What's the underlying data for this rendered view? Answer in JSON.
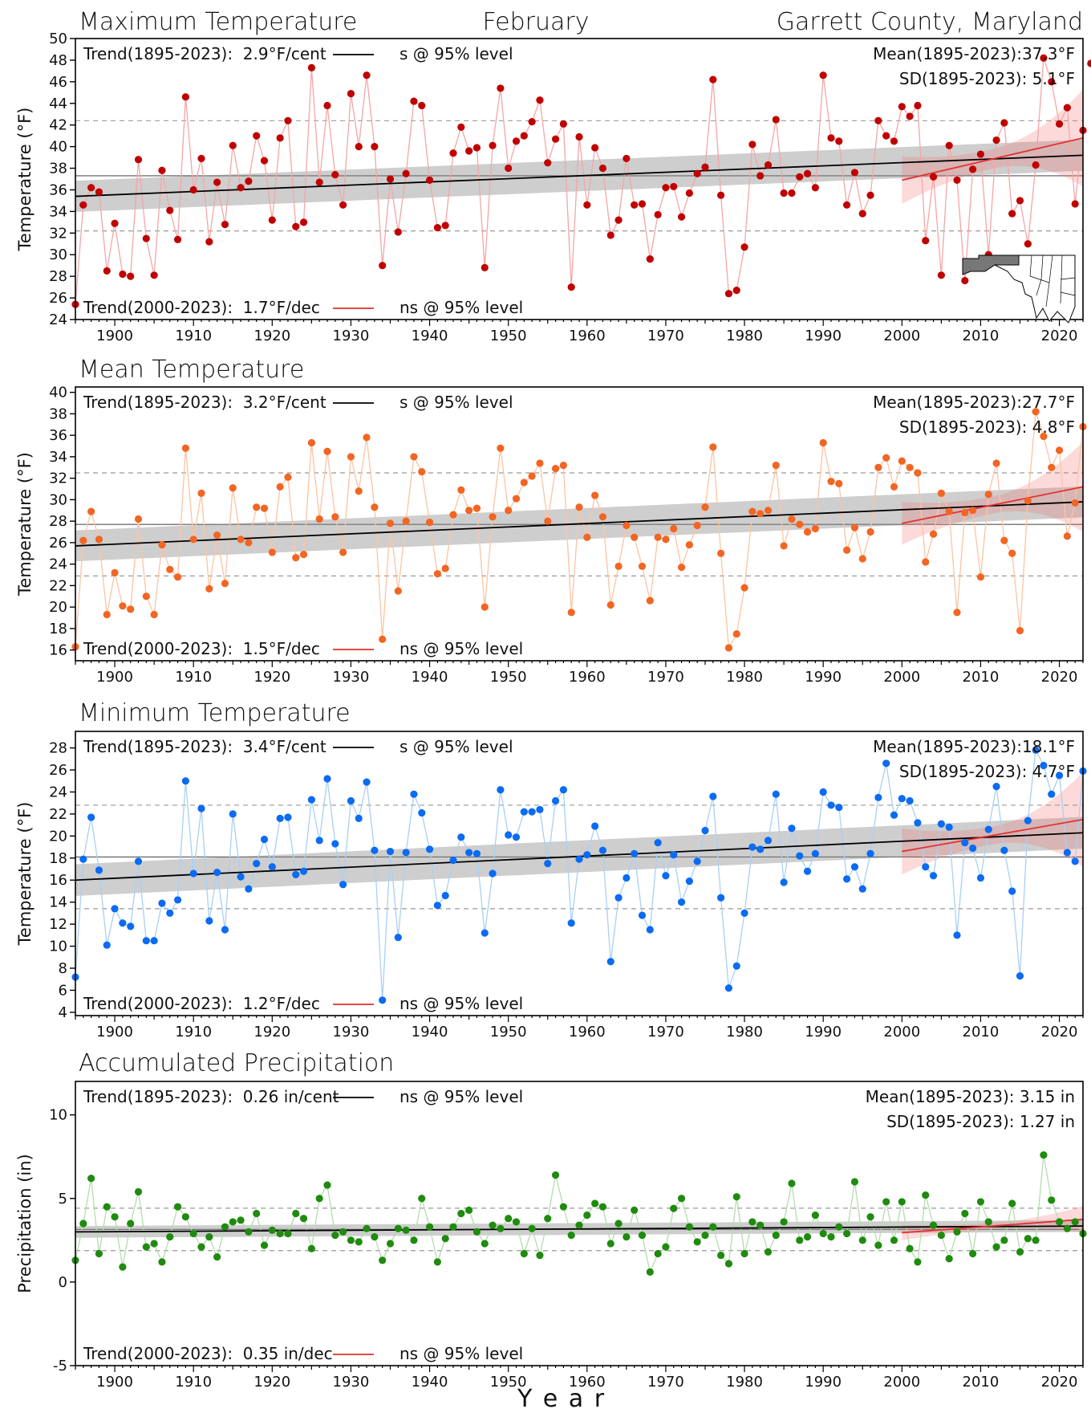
{
  "header": {
    "left": "Maximum Temperature",
    "center": "February",
    "right": "Garrett County, Maryland"
  },
  "x_axis_label": "Y e a r",
  "chart_data": [
    {
      "type": "line",
      "title": "Maximum Temperature",
      "ylabel": "Temperature (°F)",
      "color": "#c00000",
      "line_color": "#f4a6a6",
      "xlim": [
        1895,
        2023
      ],
      "ylim": [
        24,
        50
      ],
      "yticks": [
        24,
        26,
        28,
        30,
        32,
        34,
        36,
        38,
        40,
        42,
        44,
        46,
        48,
        50
      ],
      "xticks": [
        1900,
        1910,
        1920,
        1930,
        1940,
        1950,
        1960,
        1970,
        1980,
        1990,
        2000,
        2010,
        2020
      ],
      "mean": 37.3,
      "sd": 5.1,
      "trend_long": {
        "start": 35.4,
        "end": 39.2,
        "band": 0.9
      },
      "trend_recent": {
        "start": 36.9,
        "end": 40.8,
        "band_start": 2.2,
        "band_mid": 0.9,
        "band_end": 4.5
      },
      "ann": {
        "trend_long": "Trend(1895-2023):  2.9°F/cent",
        "sig_long": "s @ 95% level",
        "trend_recent": "Trend(2000-2023):  1.7°F/dec",
        "sig_recent": "ns @ 95% level",
        "mean": "Mean(1895-2023):37.3°F",
        "sd": "SD(1895-2023): 5.1°F"
      },
      "values": [
        25.4,
        34.6,
        36.2,
        35.8,
        28.5,
        32.9,
        28.2,
        28.0,
        38.8,
        31.5,
        28.1,
        37.8,
        34.1,
        31.4,
        44.6,
        36.0,
        38.9,
        31.2,
        36.7,
        32.8,
        40.1,
        36.2,
        36.8,
        41.0,
        38.7,
        33.2,
        40.8,
        42.4,
        32.6,
        33.0,
        47.3,
        36.7,
        43.8,
        37.4,
        34.6,
        44.9,
        40.0,
        46.6,
        40.0,
        29.0,
        37.0,
        32.1,
        37.5,
        44.2,
        43.8,
        36.9,
        32.5,
        32.7,
        39.4,
        41.8,
        39.6,
        39.9,
        28.8,
        40.1,
        45.4,
        38.0,
        40.5,
        41.0,
        42.3,
        44.3,
        38.5,
        40.7,
        42.1,
        27.0,
        40.9,
        34.6,
        39.9,
        38.0,
        31.8,
        33.2,
        38.9,
        34.6,
        34.7,
        29.6,
        33.7,
        36.2,
        36.3,
        33.5,
        35.7,
        37.5,
        38.1,
        46.2,
        35.5,
        26.4,
        26.7,
        30.7,
        40.2,
        37.3,
        38.3,
        42.5,
        35.7,
        35.7,
        37.2,
        37.5,
        36.2,
        46.6,
        40.8,
        40.5,
        34.6,
        37.6,
        33.8,
        35.5,
        42.4,
        41.0,
        40.5,
        43.7,
        42.8,
        43.8,
        31.3,
        37.2,
        28.1,
        40.1,
        36.9,
        27.6,
        37.9,
        39.3,
        30.0,
        40.6,
        42.2,
        33.8,
        35.0,
        31.0,
        38.3,
        48.2,
        46.0,
        42.1,
        43.6,
        34.7,
        41.5,
        47.7
      ]
    },
    {
      "type": "line",
      "title": "Mean Temperature",
      "ylabel": "Temperature (°F)",
      "color": "#f26522",
      "line_color": "#fbc4a3",
      "xlim": [
        1895,
        2023
      ],
      "ylim": [
        15,
        40.5
      ],
      "yticks": [
        16,
        18,
        20,
        22,
        24,
        26,
        28,
        30,
        32,
        34,
        36,
        38,
        40
      ],
      "xticks": [
        1900,
        1910,
        1920,
        1930,
        1940,
        1950,
        1960,
        1970,
        1980,
        1990,
        2000,
        2010,
        2020
      ],
      "mean": 27.7,
      "sd": 4.8,
      "trend_long": {
        "start": 25.7,
        "end": 29.8,
        "band": 0.9
      },
      "trend_recent": {
        "start": 27.8,
        "end": 31.2,
        "band_start": 2.0,
        "band_mid": 0.8,
        "band_end": 4.2
      },
      "ann": {
        "trend_long": "Trend(1895-2023):  3.2°F/cent",
        "sig_long": "s @ 95% level",
        "trend_recent": "Trend(2000-2023):  1.5°F/dec",
        "sig_recent": "ns @ 95% level",
        "mean": "Mean(1895-2023):27.7°F",
        "sd": "SD(1895-2023): 4.8°F"
      },
      "values": [
        16.3,
        26.2,
        28.9,
        26.3,
        19.3,
        23.2,
        20.1,
        19.8,
        28.2,
        21.0,
        19.3,
        25.8,
        23.5,
        22.8,
        34.8,
        26.3,
        30.6,
        21.7,
        26.7,
        22.2,
        31.1,
        26.3,
        26.0,
        29.3,
        29.2,
        25.1,
        31.2,
        32.1,
        24.6,
        24.9,
        35.3,
        28.2,
        34.5,
        28.4,
        25.1,
        34.0,
        30.8,
        35.8,
        29.3,
        17.0,
        27.8,
        21.5,
        28.0,
        34.0,
        32.6,
        27.9,
        23.1,
        23.6,
        28.6,
        30.9,
        29.0,
        29.2,
        20.0,
        28.4,
        34.8,
        29.0,
        30.1,
        31.6,
        32.2,
        33.4,
        28.0,
        32.9,
        33.2,
        19.5,
        29.3,
        26.5,
        30.4,
        28.4,
        20.2,
        23.8,
        27.6,
        26.5,
        23.8,
        20.6,
        26.5,
        26.3,
        27.3,
        23.7,
        25.8,
        27.6,
        29.3,
        34.9,
        25.0,
        16.2,
        17.5,
        21.8,
        28.9,
        28.7,
        29.0,
        33.2,
        25.7,
        28.2,
        27.7,
        27.0,
        27.3,
        35.3,
        31.7,
        31.5,
        25.3,
        27.4,
        24.5,
        27.0,
        33.0,
        33.9,
        31.2,
        33.6,
        33.0,
        32.5,
        24.2,
        26.8,
        30.6,
        28.9,
        19.5,
        28.8,
        29.0,
        22.8,
        30.5,
        33.4,
        26.2,
        25.0,
        17.8,
        29.9,
        38.2,
        35.9,
        33.0,
        34.6,
        26.6,
        29.7,
        36.8
      ]
    },
    {
      "type": "line",
      "title": "Minimum Temperature",
      "ylabel": "Temperature (°F)",
      "color": "#0b6bf2",
      "line_color": "#a9d0f5",
      "xlim": [
        1895,
        2023
      ],
      "ylim": [
        3.7,
        29.5
      ],
      "yticks": [
        4,
        6,
        8,
        10,
        12,
        14,
        16,
        18,
        20,
        22,
        24,
        26,
        28
      ],
      "xticks": [
        1900,
        1910,
        1920,
        1930,
        1940,
        1950,
        1960,
        1970,
        1980,
        1990,
        2000,
        2010,
        2020
      ],
      "mean": 18.1,
      "sd": 4.7,
      "trend_long": {
        "start": 16.0,
        "end": 20.3,
        "band": 0.9
      },
      "trend_recent": {
        "start": 18.6,
        "end": 21.5,
        "band_start": 2.1,
        "band_mid": 0.8,
        "band_end": 4.3
      },
      "ann": {
        "trend_long": "Trend(1895-2023):  3.4°F/cent",
        "sig_long": "s @ 95% level",
        "trend_recent": "Trend(2000-2023):  1.2°F/dec",
        "sig_recent": "ns @ 95% level",
        "mean": "Mean(1895-2023):18.1°F",
        "sd": "SD(1895-2023): 4.7°F"
      },
      "values": [
        7.2,
        17.9,
        21.7,
        16.9,
        10.1,
        13.4,
        12.1,
        11.8,
        17.7,
        10.5,
        10.5,
        13.9,
        13.0,
        14.2,
        25.0,
        16.6,
        22.5,
        12.3,
        16.7,
        11.5,
        22.0,
        16.3,
        15.2,
        17.5,
        19.7,
        17.2,
        21.6,
        21.7,
        16.5,
        16.8,
        23.3,
        19.6,
        25.2,
        19.3,
        15.6,
        23.2,
        21.6,
        24.9,
        18.7,
        5.1,
        18.6,
        10.8,
        18.5,
        23.8,
        22.1,
        18.8,
        13.7,
        14.6,
        17.8,
        19.9,
        18.5,
        18.4,
        11.2,
        16.6,
        24.2,
        20.1,
        19.9,
        22.2,
        22.2,
        22.4,
        17.5,
        23.2,
        24.2,
        12.1,
        17.9,
        18.3,
        20.9,
        18.7,
        8.6,
        14.4,
        16.2,
        18.4,
        12.8,
        11.5,
        19.4,
        16.4,
        18.3,
        14.0,
        15.9,
        17.7,
        20.5,
        23.6,
        14.4,
        6.2,
        8.2,
        13.0,
        19.0,
        18.8,
        19.6,
        23.8,
        15.8,
        20.7,
        18.2,
        16.8,
        18.4,
        24.0,
        22.8,
        22.6,
        16.1,
        17.2,
        15.2,
        18.4,
        23.5,
        26.6,
        21.9,
        23.4,
        23.2,
        21.2,
        17.2,
        16.4,
        21.1,
        20.8,
        11.0,
        19.4,
        18.9,
        16.2,
        20.6,
        24.5,
        18.7,
        15.0,
        7.3,
        21.4,
        27.8,
        26.4,
        23.8,
        25.5,
        18.5,
        17.7,
        25.9
      ]
    },
    {
      "type": "line",
      "title": "Accumulated Precipitation",
      "ylabel": "Precipitation (in)",
      "color": "#1f8b0e",
      "line_color": "#b5dcae",
      "xlim": [
        1895,
        2023
      ],
      "ylim": [
        -5,
        12
      ],
      "yticks": [
        -5,
        0,
        5,
        10
      ],
      "xticks": [
        1900,
        1910,
        1920,
        1930,
        1940,
        1950,
        1960,
        1970,
        1980,
        1990,
        2000,
        2010,
        2020
      ],
      "mean": 3.15,
      "sd": 1.27,
      "trend_long": {
        "start": 3.0,
        "end": 3.35,
        "band": 0.22
      },
      "trend_recent": {
        "start": 2.95,
        "end": 3.75,
        "band_start": 0.45,
        "band_mid": 0.2,
        "band_end": 0.8
      },
      "ann": {
        "trend_long": "Trend(1895-2023):  0.26 in/cent",
        "sig_long": "ns @ 95% level",
        "trend_recent": "Trend(2000-2023):  0.35 in/dec",
        "sig_recent": "ns @ 95% level",
        "mean": "Mean(1895-2023): 3.15 in",
        "sd": "SD(1895-2023): 1.27 in"
      },
      "values": [
        1.3,
        3.5,
        6.2,
        1.7,
        4.5,
        3.9,
        0.9,
        3.5,
        5.4,
        2.1,
        2.3,
        1.2,
        2.7,
        4.5,
        3.9,
        2.9,
        2.1,
        2.7,
        1.5,
        3.3,
        3.6,
        3.7,
        3.0,
        4.1,
        2.2,
        3.1,
        2.9,
        2.9,
        4.1,
        3.8,
        2.0,
        5.0,
        5.8,
        2.8,
        3.0,
        2.5,
        2.4,
        3.2,
        2.7,
        1.3,
        2.3,
        3.2,
        3.1,
        2.5,
        5.0,
        3.3,
        1.2,
        2.6,
        3.3,
        4.1,
        4.3,
        3.0,
        2.3,
        3.4,
        3.2,
        3.8,
        3.6,
        1.7,
        3.2,
        1.6,
        3.8,
        6.4,
        4.5,
        2.8,
        3.4,
        4.0,
        4.7,
        4.5,
        2.3,
        3.5,
        2.7,
        4.3,
        2.8,
        0.6,
        1.7,
        2.1,
        4.4,
        5.0,
        3.3,
        2.4,
        2.8,
        3.3,
        1.6,
        1.1,
        5.1,
        1.7,
        3.6,
        3.4,
        1.8,
        2.8,
        3.6,
        5.9,
        2.5,
        2.7,
        4.0,
        2.9,
        2.7,
        3.3,
        2.9,
        6.0,
        2.5,
        3.9,
        2.2,
        4.8,
        2.5,
        4.8,
        2.0,
        1.2,
        5.2,
        3.4,
        2.8,
        1.4,
        3.0,
        4.1,
        1.7,
        4.8,
        3.6,
        2.1,
        2.5,
        4.7,
        1.8,
        2.6,
        2.5,
        7.6,
        4.9,
        3.6,
        3.2,
        3.6,
        2.9
      ]
    }
  ]
}
